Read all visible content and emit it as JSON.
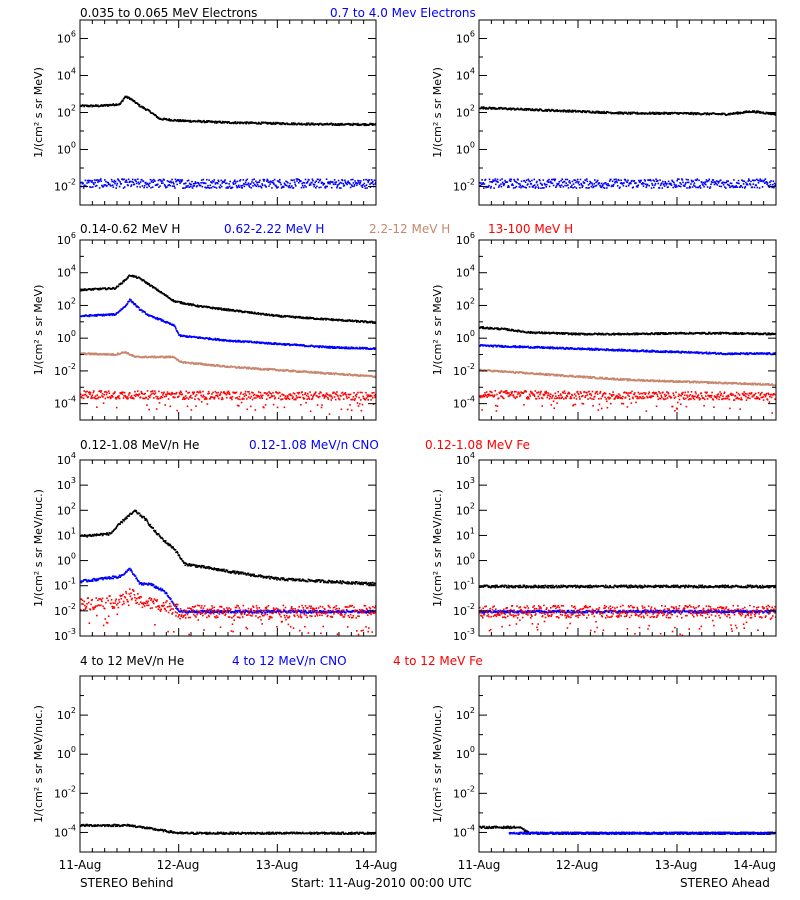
{
  "colors": {
    "black": "#000000",
    "blue": "#0000ff",
    "brown": "#c8866e",
    "red": "#ff0000"
  },
  "footer": {
    "left": "STEREO Behind",
    "center": "Start: 11-Aug-2010 00:00 UTC",
    "right": "STEREO Ahead"
  },
  "x_axis": {
    "tick_labels": [
      "11-Aug",
      "12-Aug",
      "13-Aug",
      "14-Aug"
    ],
    "range_days": [
      0,
      3
    ]
  },
  "chart_data": [
    {
      "type": "scatter",
      "panel": "electrons",
      "ylabel": "1/(cm² s sr MeV)",
      "y_scale": "log",
      "ylim": [
        0.001,
        10000000
      ],
      "ytick_exponents": [
        -2,
        0,
        2,
        4,
        6
      ],
      "legend": [
        {
          "text": "0.035 to 0.065 MeV Electrons",
          "color": "#000000"
        },
        {
          "text": "0.7 to 4.0 Mev Electrons",
          "color": "#0000ff"
        }
      ],
      "series": [
        {
          "name": "0.035 to 0.065 MeV Electrons",
          "color": "#000000",
          "behind_log10": [
            [
              0,
              2.4
            ],
            [
              0.2,
              2.4
            ],
            [
              0.4,
              2.5
            ],
            [
              0.45,
              2.9
            ],
            [
              0.5,
              2.8
            ],
            [
              0.6,
              2.4
            ],
            [
              0.7,
              2.1
            ],
            [
              0.8,
              1.7
            ],
            [
              1.0,
              1.6
            ],
            [
              1.5,
              1.5
            ],
            [
              2.0,
              1.45
            ],
            [
              2.5,
              1.4
            ],
            [
              3.0,
              1.4
            ]
          ],
          "ahead_log10": [
            [
              0,
              2.3
            ],
            [
              0.5,
              2.2
            ],
            [
              1.0,
              2.1
            ],
            [
              1.5,
              2.0
            ],
            [
              2.0,
              2.0
            ],
            [
              2.5,
              1.95
            ],
            [
              2.75,
              2.1
            ],
            [
              3.0,
              1.95
            ]
          ]
        },
        {
          "name": "0.7 to 4.0 Mev Electrons",
          "color": "#0000ff",
          "behind_log10": [
            [
              0,
              -1.8
            ],
            [
              3.0,
              -1.8
            ]
          ],
          "ahead_log10": [
            [
              0,
              -1.8
            ],
            [
              3.0,
              -1.8
            ]
          ]
        }
      ]
    },
    {
      "type": "scatter",
      "panel": "protons",
      "ylabel": "1/(cm² s sr MeV)",
      "y_scale": "log",
      "ylim": [
        1e-05,
        1000000
      ],
      "ytick_exponents": [
        -4,
        -2,
        0,
        2,
        4,
        6
      ],
      "legend": [
        {
          "text": "0.14-0.62 MeV H",
          "color": "#000000"
        },
        {
          "text": "0.62-2.22 MeV H",
          "color": "#0000ff"
        },
        {
          "text": "2.2-12 MeV H",
          "color": "#c8866e"
        },
        {
          "text": "13-100 MeV H",
          "color": "#ff0000"
        }
      ],
      "series": [
        {
          "name": "0.14-0.62 MeV H",
          "color": "#000000",
          "behind_log10": [
            [
              0,
              3.0
            ],
            [
              0.35,
              3.1
            ],
            [
              0.45,
              3.6
            ],
            [
              0.5,
              3.9
            ],
            [
              0.6,
              3.7
            ],
            [
              0.7,
              3.3
            ],
            [
              0.8,
              2.9
            ],
            [
              0.95,
              2.3
            ],
            [
              1.2,
              2.0
            ],
            [
              1.6,
              1.7
            ],
            [
              2.0,
              1.4
            ],
            [
              2.5,
              1.2
            ],
            [
              3.0,
              1.0
            ]
          ],
          "ahead_log10": [
            [
              0,
              0.7
            ],
            [
              0.25,
              0.6
            ],
            [
              0.5,
              0.4
            ],
            [
              1.0,
              0.3
            ],
            [
              1.5,
              0.3
            ],
            [
              2.0,
              0.35
            ],
            [
              2.5,
              0.35
            ],
            [
              3.0,
              0.3
            ]
          ]
        },
        {
          "name": "0.62-2.22 MeV H",
          "color": "#0000ff",
          "behind_log10": [
            [
              0,
              1.4
            ],
            [
              0.35,
              1.5
            ],
            [
              0.45,
              2.0
            ],
            [
              0.5,
              2.4
            ],
            [
              0.6,
              1.8
            ],
            [
              0.7,
              1.4
            ],
            [
              0.8,
              1.2
            ],
            [
              0.95,
              0.8
            ],
            [
              1.0,
              0.2
            ],
            [
              1.5,
              -0.1
            ],
            [
              2.0,
              -0.3
            ],
            [
              2.5,
              -0.5
            ],
            [
              3.0,
              -0.6
            ]
          ],
          "ahead_log10": [
            [
              0,
              -0.4
            ],
            [
              0.5,
              -0.5
            ],
            [
              1.0,
              -0.6
            ],
            [
              1.5,
              -0.7
            ],
            [
              2.0,
              -0.8
            ],
            [
              2.5,
              -0.9
            ],
            [
              3.0,
              -0.9
            ]
          ]
        },
        {
          "name": "2.2-12 MeV H",
          "color": "#c8866e",
          "behind_log10": [
            [
              0,
              -0.9
            ],
            [
              0.35,
              -0.95
            ],
            [
              0.45,
              -0.8
            ],
            [
              0.55,
              -1.1
            ],
            [
              0.95,
              -1.1
            ],
            [
              1.0,
              -1.4
            ],
            [
              1.5,
              -1.7
            ],
            [
              2.0,
              -1.9
            ],
            [
              2.5,
              -2.1
            ],
            [
              3.0,
              -2.3
            ]
          ],
          "ahead_log10": [
            [
              0,
              -1.9
            ],
            [
              0.5,
              -2.1
            ],
            [
              1.0,
              -2.3
            ],
            [
              1.5,
              -2.5
            ],
            [
              2.0,
              -2.6
            ],
            [
              2.5,
              -2.7
            ],
            [
              3.0,
              -2.8
            ]
          ]
        },
        {
          "name": "13-100 MeV H",
          "color": "#ff0000",
          "behind_log10": [
            [
              0,
              -3.4
            ],
            [
              3.0,
              -3.5
            ]
          ],
          "ahead_log10": [
            [
              0,
              -3.4
            ],
            [
              3.0,
              -3.5
            ]
          ]
        }
      ]
    },
    {
      "type": "scatter",
      "panel": "low-energy-ions",
      "ylabel": "1/(cm² s sr MeV/nuc.)",
      "y_scale": "log",
      "ylim": [
        0.001,
        10000
      ],
      "ytick_exponents": [
        -3,
        -2,
        -1,
        0,
        1,
        2,
        3,
        4
      ],
      "legend": [
        {
          "text": "0.12-1.08 MeV/n He",
          "color": "#000000"
        },
        {
          "text": "0.12-1.08 MeV/n CNO",
          "color": "#0000ff"
        },
        {
          "text": "0.12-1.08 MeV Fe",
          "color": "#ff0000"
        }
      ],
      "series": [
        {
          "name": "0.12-1.08 MeV/n He",
          "color": "#000000",
          "behind_log10": [
            [
              0,
              1.0
            ],
            [
              0.3,
              1.1
            ],
            [
              0.45,
              1.7
            ],
            [
              0.55,
              2.0
            ],
            [
              0.65,
              1.7
            ],
            [
              0.75,
              1.2
            ],
            [
              0.85,
              0.8
            ],
            [
              0.95,
              0.5
            ],
            [
              1.05,
              -0.1
            ],
            [
              1.5,
              -0.4
            ],
            [
              2.0,
              -0.7
            ],
            [
              2.5,
              -0.8
            ],
            [
              3.0,
              -0.9
            ]
          ],
          "ahead_log10": [
            [
              0,
              -1.0
            ],
            [
              3.0,
              -1.0
            ]
          ]
        },
        {
          "name": "0.12-1.08 MeV/n CNO",
          "color": "#0000ff",
          "behind_log10": [
            [
              0,
              -0.8
            ],
            [
              0.4,
              -0.6
            ],
            [
              0.5,
              -0.3
            ],
            [
              0.6,
              -0.9
            ],
            [
              0.7,
              -0.9
            ],
            [
              0.85,
              -1.2
            ],
            [
              1.0,
              -2.0
            ],
            [
              3.0,
              -2.0
            ]
          ],
          "ahead_log10": [
            [
              0,
              -2.0
            ],
            [
              3.0,
              -2.0
            ]
          ]
        },
        {
          "name": "0.12-1.08 MeV Fe",
          "color": "#ff0000",
          "behind_log10": [
            [
              0,
              -1.7
            ],
            [
              0.4,
              -1.6
            ],
            [
              0.5,
              -1.3
            ],
            [
              0.6,
              -1.6
            ],
            [
              0.9,
              -1.8
            ],
            [
              1.0,
              -2.0
            ],
            [
              3.0,
              -2.0
            ]
          ],
          "ahead_log10": [
            [
              0,
              -2.0
            ],
            [
              3.0,
              -2.0
            ]
          ]
        }
      ]
    },
    {
      "type": "scatter",
      "panel": "high-energy-ions",
      "ylabel": "1/(cm² s sr MeV/nuc.)",
      "y_scale": "log",
      "ylim": [
        1e-05,
        10000
      ],
      "ytick_exponents": [
        -4,
        -2,
        0,
        2
      ],
      "legend": [
        {
          "text": "4 to 12 MeV/n He",
          "color": "#000000"
        },
        {
          "text": "4 to 12 MeV/n CNO",
          "color": "#0000ff"
        },
        {
          "text": "4 to 12 MeV Fe",
          "color": "#ff0000"
        }
      ],
      "series": [
        {
          "name": "4 to 12 MeV/n He",
          "color": "#000000",
          "behind_log10": [
            [
              0,
              -3.6
            ],
            [
              0.5,
              -3.6
            ],
            [
              1.0,
              -4.0
            ],
            [
              3.0,
              -4.0
            ]
          ],
          "ahead_log10": [
            [
              0,
              -3.7
            ],
            [
              0.4,
              -3.7
            ],
            [
              0.5,
              -4.0
            ],
            [
              3.0,
              -4.0
            ]
          ]
        },
        {
          "name": "4 to 12 MeV/n CNO",
          "color": "#0000ff",
          "behind_log10": [],
          "ahead_log10": [
            [
              0.3,
              -4.0
            ],
            [
              3.0,
              -4.0
            ]
          ]
        },
        {
          "name": "4 to 12 MeV Fe",
          "color": "#ff0000",
          "behind_log10": [],
          "ahead_log10": []
        }
      ]
    }
  ]
}
